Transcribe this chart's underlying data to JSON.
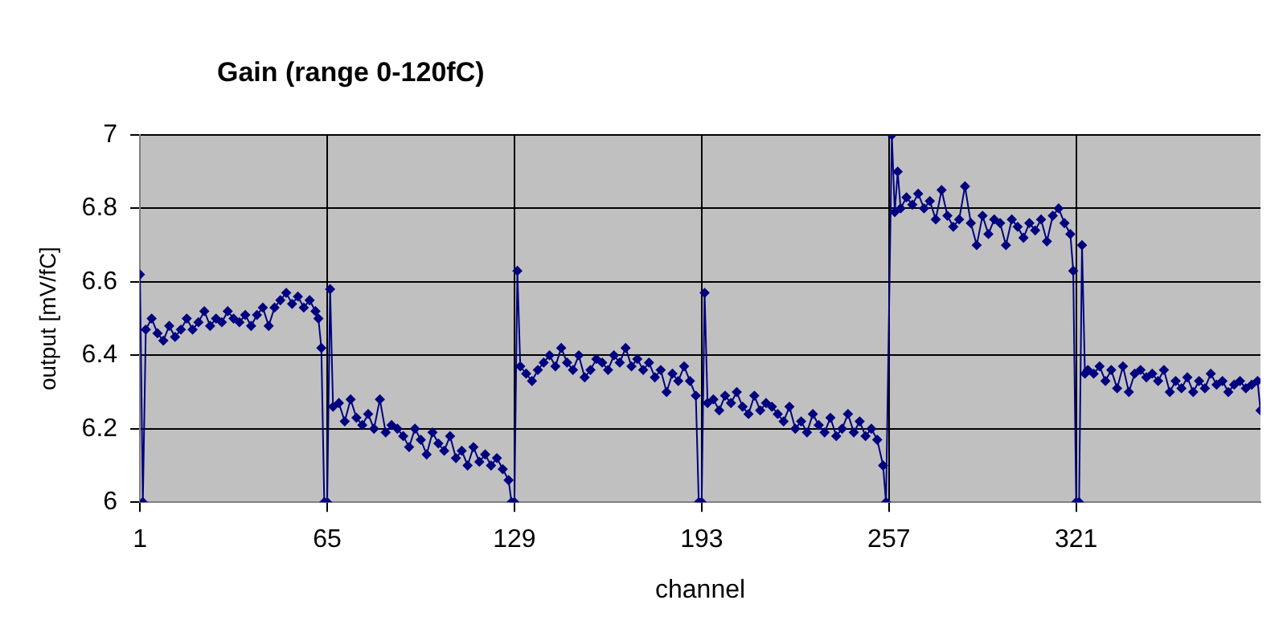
{
  "chart_data": {
    "type": "line",
    "title": "Gain (range 0-120fC)",
    "xlabel": "channel",
    "ylabel": "output [mV/fC]",
    "xlim": [
      1,
      384
    ],
    "xticks": [
      1,
      65,
      129,
      193,
      257,
      321
    ],
    "ylim": [
      6,
      7
    ],
    "yticks": [
      6,
      6.2,
      6.4,
      6.6,
      6.8,
      7
    ],
    "grid": true,
    "legend": false,
    "marker": "diamond",
    "line_style": "solid",
    "series": [
      {
        "color": "#000080",
        "x": [
          1,
          2,
          3,
          5,
          7,
          9,
          11,
          13,
          15,
          17,
          19,
          21,
          23,
          25,
          27,
          29,
          31,
          33,
          35,
          37,
          39,
          41,
          43,
          45,
          47,
          49,
          51,
          53,
          55,
          57,
          59,
          61,
          62,
          63,
          64,
          65,
          66,
          67,
          69,
          71,
          73,
          75,
          77,
          79,
          81,
          83,
          85,
          87,
          89,
          91,
          93,
          95,
          97,
          99,
          101,
          103,
          105,
          107,
          109,
          111,
          113,
          115,
          117,
          119,
          121,
          123,
          125,
          127,
          128,
          129,
          130,
          131,
          133,
          135,
          137,
          139,
          141,
          143,
          145,
          147,
          149,
          151,
          153,
          155,
          157,
          159,
          161,
          163,
          165,
          167,
          169,
          171,
          173,
          175,
          177,
          179,
          181,
          183,
          185,
          187,
          189,
          191,
          192,
          193,
          194,
          195,
          197,
          199,
          201,
          203,
          205,
          207,
          209,
          211,
          213,
          215,
          217,
          219,
          221,
          223,
          225,
          227,
          229,
          231,
          233,
          235,
          237,
          239,
          241,
          243,
          245,
          247,
          249,
          251,
          253,
          255,
          256,
          258,
          259,
          260,
          261,
          263,
          265,
          267,
          269,
          271,
          273,
          275,
          277,
          279,
          281,
          283,
          285,
          287,
          289,
          291,
          293,
          295,
          297,
          299,
          301,
          303,
          305,
          307,
          309,
          311,
          313,
          315,
          317,
          319,
          320,
          321,
          322,
          323,
          324,
          325,
          327,
          329,
          331,
          333,
          335,
          337,
          339,
          341,
          343,
          345,
          347,
          349,
          351,
          353,
          355,
          357,
          359,
          361,
          363,
          365,
          367,
          369,
          371,
          373,
          375,
          377,
          379,
          381,
          383,
          384
        ],
        "values": [
          6.62,
          6.0,
          6.47,
          6.5,
          6.46,
          6.44,
          6.48,
          6.45,
          6.47,
          6.5,
          6.47,
          6.49,
          6.52,
          6.48,
          6.5,
          6.49,
          6.52,
          6.5,
          6.49,
          6.51,
          6.48,
          6.51,
          6.53,
          6.48,
          6.53,
          6.55,
          6.57,
          6.54,
          6.56,
          6.53,
          6.55,
          6.52,
          6.5,
          6.42,
          6.0,
          6.0,
          6.58,
          6.26,
          6.27,
          6.22,
          6.28,
          6.23,
          6.21,
          6.24,
          6.2,
          6.28,
          6.19,
          6.21,
          6.2,
          6.18,
          6.15,
          6.2,
          6.17,
          6.13,
          6.19,
          6.16,
          6.14,
          6.18,
          6.12,
          6.14,
          6.1,
          6.15,
          6.11,
          6.13,
          6.1,
          6.12,
          6.09,
          6.06,
          6.0,
          6.0,
          6.63,
          6.37,
          6.35,
          6.33,
          6.36,
          6.38,
          6.4,
          6.37,
          6.42,
          6.38,
          6.36,
          6.4,
          6.34,
          6.36,
          6.39,
          6.38,
          6.36,
          6.4,
          6.38,
          6.42,
          6.37,
          6.39,
          6.36,
          6.38,
          6.34,
          6.36,
          6.3,
          6.35,
          6.33,
          6.37,
          6.33,
          6.29,
          6.0,
          6.0,
          6.57,
          6.27,
          6.28,
          6.25,
          6.29,
          6.27,
          6.3,
          6.26,
          6.24,
          6.29,
          6.25,
          6.27,
          6.26,
          6.24,
          6.22,
          6.26,
          6.2,
          6.22,
          6.19,
          6.24,
          6.21,
          6.19,
          6.23,
          6.18,
          6.2,
          6.24,
          6.19,
          6.22,
          6.18,
          6.2,
          6.17,
          6.1,
          6.0,
          7.0,
          6.79,
          6.9,
          6.8,
          6.83,
          6.81,
          6.84,
          6.8,
          6.82,
          6.77,
          6.85,
          6.78,
          6.75,
          6.77,
          6.86,
          6.76,
          6.7,
          6.78,
          6.73,
          6.77,
          6.76,
          6.7,
          6.77,
          6.75,
          6.72,
          6.76,
          6.74,
          6.77,
          6.71,
          6.78,
          6.8,
          6.76,
          6.73,
          6.63,
          6.0,
          6.0,
          6.7,
          6.35,
          6.36,
          6.35,
          6.37,
          6.33,
          6.36,
          6.31,
          6.37,
          6.3,
          6.35,
          6.36,
          6.34,
          6.35,
          6.33,
          6.36,
          6.3,
          6.33,
          6.31,
          6.34,
          6.3,
          6.33,
          6.31,
          6.35,
          6.32,
          6.33,
          6.3,
          6.32,
          6.33,
          6.31,
          6.32,
          6.33,
          6.25
        ]
      }
    ]
  }
}
